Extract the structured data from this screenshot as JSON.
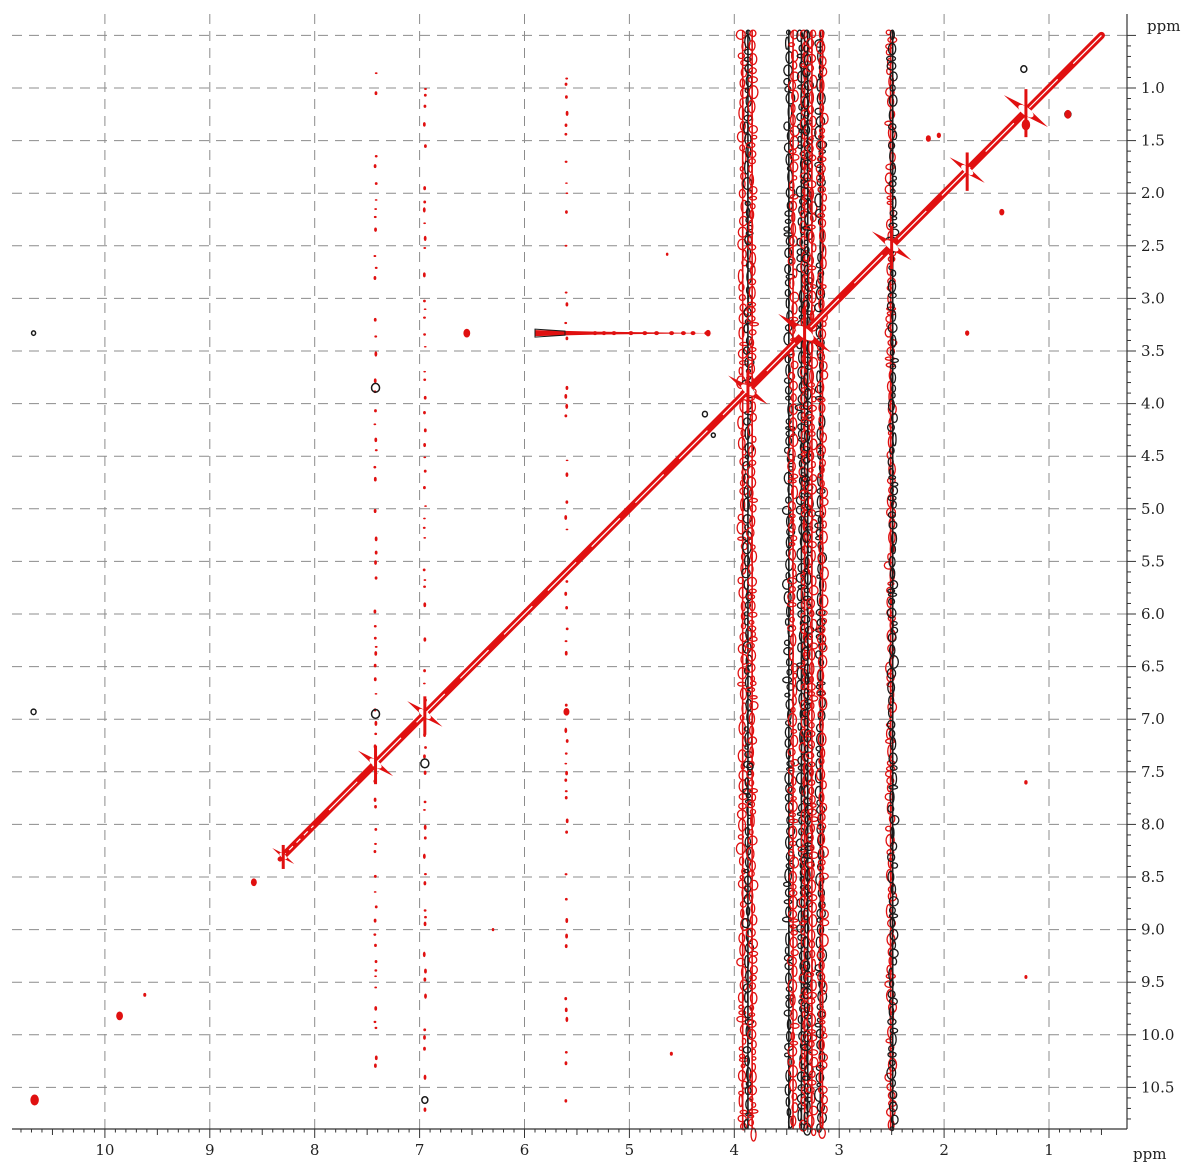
{
  "chart_data": {
    "type": "heatmap",
    "title": "",
    "xlabel": "ppm",
    "ylabel": "ppm",
    "x_axis": {
      "reversed": true,
      "range": [
        10.9,
        0.4
      ],
      "ticks": [
        10,
        9,
        8,
        7,
        6,
        5,
        4,
        3,
        2,
        1
      ],
      "tick_labels": [
        "10",
        "9",
        "8",
        "7",
        "6",
        "5",
        "4",
        "3",
        "2",
        "1"
      ],
      "unit_label": "ppm"
    },
    "y_axis": {
      "position": "right",
      "range": [
        0.45,
        10.9
      ],
      "ticks": [
        1.0,
        1.5,
        2.0,
        2.5,
        3.0,
        3.5,
        4.0,
        4.5,
        5.0,
        5.5,
        6.0,
        6.5,
        7.0,
        7.5,
        8.0,
        8.5,
        9.0,
        9.5,
        10.0,
        10.5
      ],
      "tick_labels": [
        "1.0",
        "1.5",
        "2.0",
        "2.5",
        "3.0",
        "3.5",
        "4.0",
        "4.5",
        "5.0",
        "5.5",
        "6.0",
        "6.5",
        "7.0",
        "7.5",
        "8.0",
        "8.5",
        "9.0",
        "9.5",
        "10.0",
        "10.5"
      ],
      "unit_label": "ppm"
    },
    "grid": true,
    "grid_style": "dashed",
    "colors": {
      "positive": "#e01010",
      "negative": "#1a1a1a",
      "grid": "#8c8c8c"
    },
    "diagonal": {
      "from": 0.5,
      "to": 8.3
    },
    "vertical_streaks": [
      {
        "x": 7.42,
        "y0": 0.85,
        "y1": 10.7,
        "color": "red",
        "dense": false
      },
      {
        "x": 6.95,
        "y0": 1.0,
        "y1": 10.7,
        "color": "red",
        "dense": false
      },
      {
        "x": 5.6,
        "y0": 0.9,
        "y1": 10.7,
        "color": "red",
        "dense": false
      },
      {
        "x": 3.92,
        "y0": 0.45,
        "y1": 10.9,
        "color": "red",
        "dense": true
      },
      {
        "x": 3.87,
        "y0": 0.45,
        "y1": 10.9,
        "color": "black",
        "dense": true
      },
      {
        "x": 3.83,
        "y0": 0.45,
        "y1": 10.9,
        "color": "red",
        "dense": true
      },
      {
        "x": 3.48,
        "y0": 0.45,
        "y1": 10.9,
        "color": "black",
        "dense": true
      },
      {
        "x": 3.44,
        "y0": 0.45,
        "y1": 10.9,
        "color": "red",
        "dense": true
      },
      {
        "x": 3.36,
        "y0": 0.45,
        "y1": 10.9,
        "color": "black",
        "dense": true
      },
      {
        "x": 3.33,
        "y0": 0.45,
        "y1": 10.9,
        "color": "red",
        "dense": true
      },
      {
        "x": 3.3,
        "y0": 0.45,
        "y1": 10.9,
        "color": "black",
        "dense": true
      },
      {
        "x": 3.26,
        "y0": 0.45,
        "y1": 10.9,
        "color": "red",
        "dense": true
      },
      {
        "x": 3.18,
        "y0": 0.45,
        "y1": 10.9,
        "color": "black",
        "dense": true
      },
      {
        "x": 3.16,
        "y0": 0.45,
        "y1": 10.9,
        "color": "red",
        "dense": true
      },
      {
        "x": 2.51,
        "y0": 0.45,
        "y1": 10.9,
        "color": "red",
        "dense": true
      },
      {
        "x": 2.49,
        "y0": 0.45,
        "y1": 10.9,
        "color": "black",
        "dense": true
      }
    ],
    "horizontal_streaks": [
      {
        "y": 3.33,
        "x0": 5.9,
        "x1": 4.2,
        "color": "red"
      }
    ],
    "peaks": [
      {
        "x": 10.68,
        "y": 3.33,
        "color": "black",
        "size": 2
      },
      {
        "x": 10.68,
        "y": 6.93,
        "color": "black",
        "size": 2.5
      },
      {
        "x": 10.67,
        "y": 10.62,
        "color": "red",
        "size": 5
      },
      {
        "x": 9.86,
        "y": 9.82,
        "color": "red",
        "size": 4
      },
      {
        "x": 8.58,
        "y": 8.55,
        "color": "red",
        "size": 3.5
      },
      {
        "x": 6.55,
        "y": 3.33,
        "color": "red",
        "size": 4
      },
      {
        "x": 7.42,
        "y": 3.85,
        "color": "black",
        "size": 4
      },
      {
        "x": 7.42,
        "y": 6.95,
        "color": "black",
        "size": 4
      },
      {
        "x": 6.95,
        "y": 7.42,
        "color": "black",
        "size": 4
      },
      {
        "x": 6.95,
        "y": 10.62,
        "color": "black",
        "size": 3
      },
      {
        "x": 5.6,
        "y": 6.93,
        "color": "red",
        "size": 3.5
      },
      {
        "x": 4.25,
        "y": 3.33,
        "color": "red",
        "size": 3
      },
      {
        "x": 4.28,
        "y": 4.1,
        "color": "black",
        "size": 2.5
      },
      {
        "x": 4.2,
        "y": 4.3,
        "color": "black",
        "size": 2
      },
      {
        "x": 3.85,
        "y": 7.45,
        "color": "black",
        "size": 3
      },
      {
        "x": 2.15,
        "y": 1.48,
        "color": "red",
        "size": 3
      },
      {
        "x": 2.05,
        "y": 1.45,
        "color": "red",
        "size": 2.5
      },
      {
        "x": 1.78,
        "y": 3.33,
        "color": "red",
        "size": 2.5
      },
      {
        "x": 1.45,
        "y": 2.18,
        "color": "red",
        "size": 3
      },
      {
        "x": 1.22,
        "y": 1.35,
        "color": "red",
        "size": 5
      },
      {
        "x": 1.24,
        "y": 0.82,
        "color": "black",
        "size": 3
      },
      {
        "x": 0.82,
        "y": 1.25,
        "color": "black",
        "size": 3
      },
      {
        "x": 0.82,
        "y": 1.25,
        "color": "red",
        "size": 4
      },
      {
        "x": 1.22,
        "y": 7.6,
        "color": "red",
        "size": 2
      },
      {
        "x": 1.22,
        "y": 9.45,
        "color": "red",
        "size": 1.8
      },
      {
        "x": 4.6,
        "y": 10.18,
        "color": "red",
        "size": 1.8
      },
      {
        "x": 9.62,
        "y": 9.62,
        "color": "red",
        "size": 1.8
      },
      {
        "x": 6.3,
        "y": 9.0,
        "color": "red",
        "size": 1.5
      },
      {
        "x": 4.64,
        "y": 2.58,
        "color": "red",
        "size": 1.5
      }
    ],
    "diagonal_blobs": [
      {
        "x": 7.42,
        "color": "red",
        "size": 8
      },
      {
        "x": 6.95,
        "color": "red",
        "size": 8
      },
      {
        "x": 3.87,
        "color": "red",
        "size": 9
      },
      {
        "x": 3.33,
        "color": "red",
        "size": 12
      },
      {
        "x": 2.5,
        "color": "red",
        "size": 9
      },
      {
        "x": 1.78,
        "color": "red",
        "size": 8
      },
      {
        "x": 1.22,
        "color": "red",
        "size": 10
      },
      {
        "x": 8.3,
        "color": "red",
        "size": 5
      }
    ]
  }
}
